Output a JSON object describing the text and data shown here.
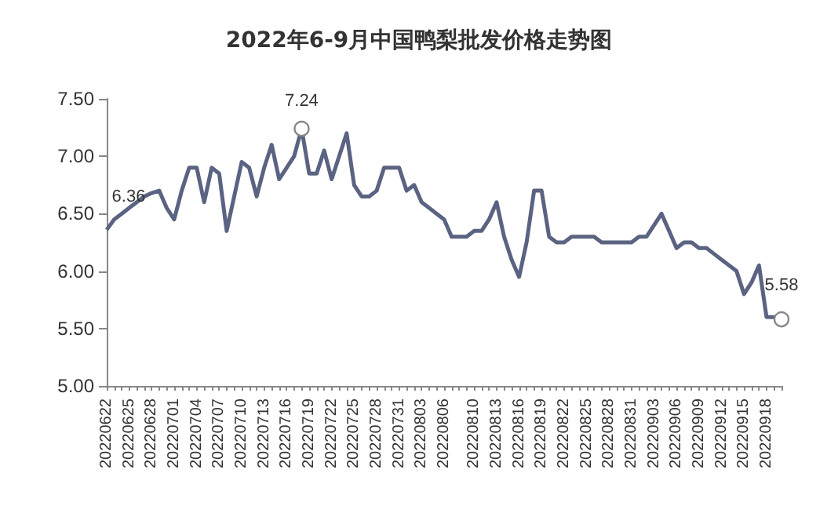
{
  "chart_data": {
    "type": "line",
    "title": "2022年6-9月中国鸭梨批发价格走势图",
    "categories": [
      "20220622",
      null,
      null,
      "20220625",
      null,
      null,
      "20220628",
      null,
      null,
      "20220701",
      null,
      null,
      "20220704",
      null,
      null,
      "20220707",
      null,
      null,
      "20220710",
      null,
      null,
      "20220713",
      null,
      null,
      "20220716",
      null,
      null,
      "20220719",
      null,
      null,
      "20220722",
      null,
      null,
      "20220725",
      null,
      null,
      "20220728",
      null,
      null,
      "20220731",
      null,
      null,
      "20220803",
      null,
      null,
      "20220806",
      null,
      null,
      null,
      "20220810",
      null,
      null,
      "20220813",
      null,
      null,
      "20220816",
      null,
      null,
      "20220819",
      null,
      null,
      "20220822",
      null,
      null,
      "20220825",
      null,
      null,
      "20220828",
      null,
      null,
      "20220831",
      null,
      null,
      "20220903",
      null,
      null,
      "20220906",
      null,
      null,
      "20220909",
      null,
      null,
      "20220912",
      null,
      null,
      "20220915",
      null,
      null,
      "20220918",
      null,
      null
    ],
    "series": [
      {
        "color": "#5b6382",
        "values": [
          6.36,
          6.45,
          6.5,
          6.55,
          6.6,
          6.65,
          6.68,
          6.7,
          6.55,
          6.45,
          6.7,
          6.9,
          6.9,
          6.6,
          6.9,
          6.85,
          6.35,
          6.65,
          6.95,
          6.9,
          6.65,
          6.9,
          7.1,
          6.8,
          6.9,
          7.0,
          7.24,
          6.85,
          6.85,
          7.05,
          6.8,
          7.0,
          7.2,
          6.75,
          6.65,
          6.65,
          6.7,
          6.9,
          6.9,
          6.9,
          6.7,
          6.75,
          6.6,
          6.55,
          6.5,
          6.45,
          6.3,
          6.3,
          6.3,
          6.35,
          6.35,
          6.45,
          6.6,
          6.3,
          6.1,
          5.95,
          6.25,
          6.7,
          6.7,
          6.3,
          6.25,
          6.25,
          6.3,
          6.3,
          6.3,
          6.3,
          6.25,
          6.25,
          6.25,
          6.25,
          6.25,
          6.3,
          6.3,
          6.4,
          6.5,
          6.35,
          6.2,
          6.25,
          6.25,
          6.2,
          6.2,
          6.15,
          6.1,
          6.05,
          6.0,
          5.8,
          5.9,
          6.05,
          5.6,
          5.6,
          5.58
        ],
        "value_labels": [
          "6.36",
          null,
          null,
          null,
          null,
          null,
          null,
          null,
          null,
          null,
          null,
          null,
          null,
          null,
          null,
          null,
          null,
          null,
          null,
          null,
          null,
          null,
          null,
          null,
          null,
          null,
          "7.24",
          null,
          null,
          null,
          null,
          null,
          null,
          null,
          null,
          null,
          null,
          null,
          null,
          null,
          null,
          null,
          null,
          null,
          null,
          null,
          null,
          null,
          null,
          null,
          null,
          null,
          null,
          null,
          null,
          null,
          null,
          null,
          null,
          null,
          null,
          null,
          null,
          null,
          null,
          null,
          null,
          null,
          null,
          null,
          null,
          null,
          null,
          null,
          null,
          null,
          null,
          null,
          null,
          null,
          null,
          null,
          null,
          null,
          null,
          null,
          null,
          null,
          null,
          null,
          "5.58"
        ]
      }
    ],
    "ylim": [
      5.0,
      7.5
    ],
    "yticks": [
      {
        "value": 5.0,
        "label": "5.00"
      },
      {
        "value": 5.5,
        "label": "5.50"
      },
      {
        "value": 6.0,
        "label": "6.00"
      },
      {
        "value": 6.5,
        "label": "6.50"
      },
      {
        "value": 7.0,
        "label": "7.00"
      },
      {
        "value": 7.5,
        "label": "7.50"
      }
    ],
    "grid": false
  }
}
